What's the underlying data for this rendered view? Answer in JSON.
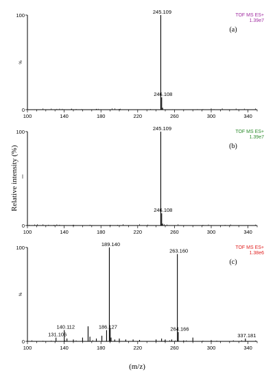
{
  "chart_data": [
    {
      "type": "line",
      "panel_label": "(a)",
      "instrument": "TOF MS ES+",
      "intensity": "1.39e7",
      "color": "#a02ca0",
      "y_axis_symbol": "%",
      "xlim": [
        100,
        350
      ],
      "ylim": [
        0,
        100
      ],
      "x_ticks": [
        "100",
        "140",
        "180",
        "220",
        "260",
        "300",
        "340"
      ],
      "y_ticks": [
        "0",
        "100"
      ],
      "peaks": [
        [
          245.109,
          100
        ],
        [
          246.108,
          13
        ],
        [
          247.11,
          2
        ],
        [
          148,
          1
        ],
        [
          175,
          0.8
        ],
        [
          200,
          0.7
        ]
      ],
      "peak_labels": [
        {
          "text": "245.109",
          "x": 245.109,
          "y": 100
        },
        {
          "text": "246.108",
          "x": 246.108,
          "y": 13
        }
      ]
    },
    {
      "type": "line",
      "panel_label": "(b)",
      "instrument": "TOF MS ES+",
      "intensity": "1.39e7",
      "color": "#2a8a2a",
      "y_axis_symbol": "",
      "xlim": [
        100,
        350
      ],
      "ylim": [
        0,
        100
      ],
      "x_ticks": [
        "100",
        "140",
        "180",
        "220",
        "260",
        "300",
        "340"
      ],
      "y_ticks": [
        "0",
        "100"
      ],
      "peaks": [
        [
          245.109,
          100
        ],
        [
          246.108,
          13
        ],
        [
          247.11,
          2
        ],
        [
          150,
          0.8
        ],
        [
          190,
          0.6
        ]
      ],
      "peak_labels": [
        {
          "text": "245.109",
          "x": 245.109,
          "y": 100
        },
        {
          "text": "246.108",
          "x": 246.108,
          "y": 13
        }
      ]
    },
    {
      "type": "line",
      "panel_label": "(c)",
      "instrument": "TOF MS ES+",
      "intensity": "1.38e6",
      "color": "#e02020",
      "y_axis_symbol": "%",
      "xlim": [
        100,
        350
      ],
      "ylim": [
        0,
        100
      ],
      "x_ticks": [
        "100",
        "140",
        "180",
        "220",
        "260",
        "300",
        "340"
      ],
      "y_ticks": [
        "0",
        "100"
      ],
      "peaks": [
        [
          131.106,
          4
        ],
        [
          140.112,
          12
        ],
        [
          143,
          3
        ],
        [
          150,
          2
        ],
        [
          160,
          4
        ],
        [
          166,
          16
        ],
        [
          168,
          5
        ],
        [
          175,
          3
        ],
        [
          181,
          6
        ],
        [
          186.127,
          12
        ],
        [
          189.14,
          100
        ],
        [
          190.14,
          14
        ],
        [
          191,
          4
        ],
        [
          195,
          2
        ],
        [
          200,
          3
        ],
        [
          207,
          2
        ],
        [
          215,
          2
        ],
        [
          222,
          1.5
        ],
        [
          240,
          2
        ],
        [
          246,
          3
        ],
        [
          250,
          2
        ],
        [
          257,
          2
        ],
        [
          263.16,
          93
        ],
        [
          264.166,
          10
        ],
        [
          270,
          1
        ],
        [
          280,
          4
        ],
        [
          300,
          1
        ],
        [
          337.181,
          3
        ]
      ],
      "peak_labels": [
        {
          "text": "189.140",
          "x": 189.14,
          "y": 100
        },
        {
          "text": "263.160",
          "x": 263.16,
          "y": 93
        },
        {
          "text": "140.112",
          "x": 140.112,
          "y": 12
        },
        {
          "text": "186.127",
          "x": 186.127,
          "y": 12
        },
        {
          "text": "131.106",
          "x": 131.106,
          "y": 4
        },
        {
          "text": "264.166",
          "x": 264.166,
          "y": 10
        },
        {
          "text": "337.181",
          "x": 337.181,
          "y": 3
        }
      ]
    }
  ],
  "y_axis_title": "Relative intensity (%)",
  "x_axis_title": "(m/z)"
}
